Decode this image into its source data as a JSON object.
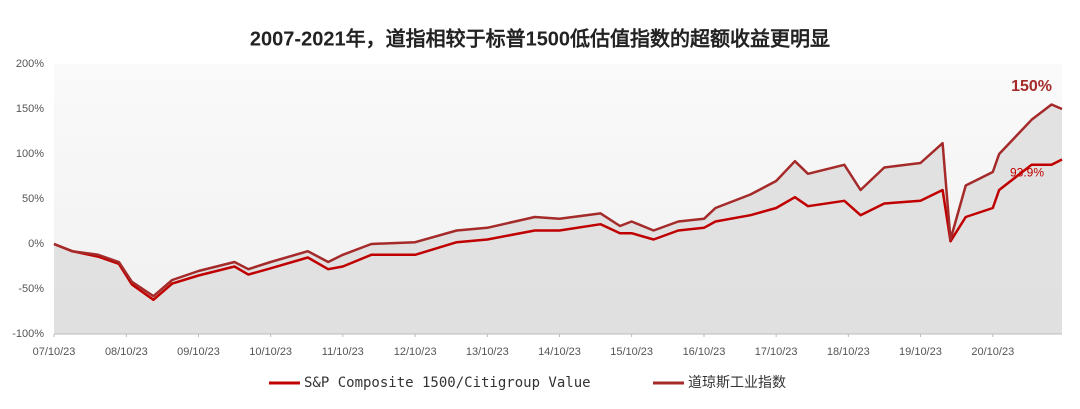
{
  "chart_data": {
    "type": "line",
    "title": "2007-2021年，道指相较于标普1500低估值指数的超额收益更明显",
    "x": [
      "07/10/23",
      "08/01/23",
      "08/06/02",
      "08/09/15",
      "08/11/20",
      "09/03/09",
      "09/06/12",
      "09/10/23",
      "10/04/23",
      "10/07/02",
      "10/10/23",
      "11/04/29",
      "11/08/10",
      "11/10/23",
      "12/03/15",
      "12/10/23",
      "13/05/21",
      "13/10/23",
      "14/06/20",
      "14/10/23",
      "15/05/19",
      "15/08/25",
      "15/10/23",
      "16/02/11",
      "16/06/15",
      "16/10/23",
      "16/12/20",
      "17/06/15",
      "17/10/23",
      "18/01/26",
      "18/04/02",
      "18/10/03",
      "18/12/24",
      "19/04/23",
      "19/10/23",
      "20/02/12",
      "20/03/23",
      "20/06/08",
      "20/10/23",
      "20/11/24",
      "21/05/07",
      "21/08/16",
      "21/10/08"
    ],
    "series": [
      {
        "name": "S&P Composite 1500/Citigroup Value",
        "color": "#c00000",
        "values": [
          0,
          -8,
          -14,
          -22,
          -45,
          -62,
          -44,
          -35,
          -25,
          -34,
          -27,
          -15,
          -28,
          -25,
          -12,
          -12,
          2,
          5,
          15,
          15,
          22,
          12,
          12,
          5,
          15,
          18,
          25,
          32,
          40,
          52,
          42,
          48,
          32,
          45,
          48,
          60,
          3,
          30,
          40,
          60,
          88,
          88,
          93.9
        ],
        "value_labels": [
          null,
          null,
          null,
          null,
          null,
          null,
          null,
          null,
          null,
          null,
          null,
          null,
          null,
          null,
          null,
          null,
          null,
          null,
          null,
          null,
          null,
          null,
          null,
          null,
          null,
          null,
          null,
          null,
          null,
          null,
          null,
          null,
          null,
          null,
          null,
          null,
          null,
          null,
          null,
          null,
          null,
          null,
          "93.9%"
        ]
      },
      {
        "name": "道琼斯工业指数",
        "color": "#a52a2a",
        "values": [
          0,
          -8,
          -12,
          -20,
          -42,
          -58,
          -40,
          -30,
          -20,
          -28,
          -20,
          -8,
          -20,
          -12,
          0,
          2,
          15,
          18,
          30,
          28,
          34,
          20,
          25,
          15,
          25,
          28,
          40,
          55,
          70,
          92,
          78,
          88,
          60,
          85,
          90,
          112,
          5,
          65,
          80,
          100,
          138,
          155,
          150
        ],
        "value_labels": [
          null,
          null,
          null,
          null,
          null,
          null,
          null,
          null,
          null,
          null,
          null,
          null,
          null,
          null,
          null,
          null,
          null,
          null,
          null,
          null,
          null,
          null,
          null,
          null,
          null,
          null,
          null,
          null,
          null,
          null,
          null,
          null,
          null,
          null,
          null,
          null,
          null,
          null,
          null,
          null,
          null,
          null,
          "150%"
        ]
      }
    ],
    "xlim": [
      "07/10/23",
      "21/10/08"
    ],
    "xticks": [
      "07/10/23",
      "08/10/23",
      "09/10/23",
      "10/10/23",
      "11/10/23",
      "12/10/23",
      "13/10/23",
      "14/10/23",
      "15/10/23",
      "16/10/23",
      "17/10/23",
      "18/10/23",
      "19/10/23",
      "20/10/23"
    ],
    "ylim": [
      -100,
      200
    ],
    "yticks": [
      {
        "value": -100,
        "label": "-100%"
      },
      {
        "value": -50,
        "label": "-50%"
      },
      {
        "value": 0,
        "label": "0%"
      },
      {
        "value": 50,
        "label": "50%"
      },
      {
        "value": 100,
        "label": "100%"
      },
      {
        "value": 150,
        "label": "150%"
      },
      {
        "value": 200,
        "label": "200%"
      }
    ],
    "grid": false
  }
}
